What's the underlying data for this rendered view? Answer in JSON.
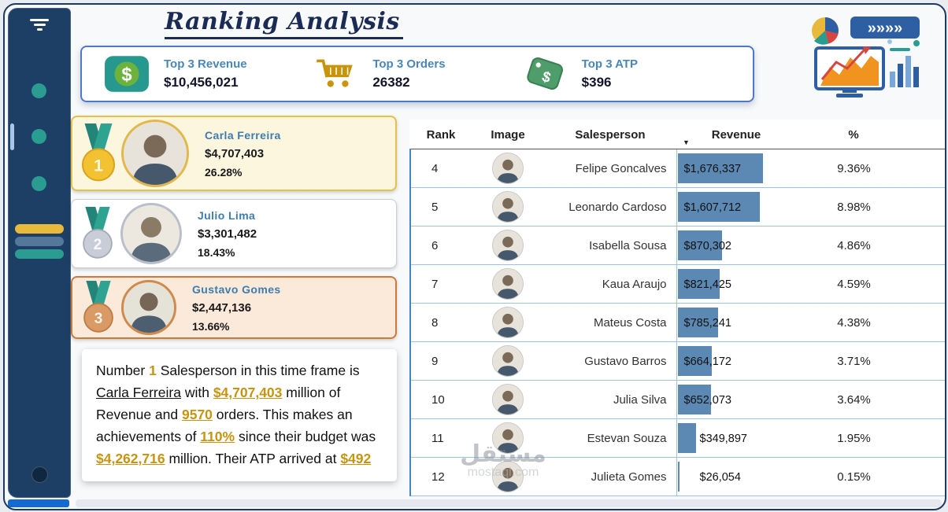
{
  "title": "Ranking Analysis",
  "kpis": [
    {
      "label": "Top 3 Revenue",
      "value": "$10,456,021",
      "icon": "dollar-icon",
      "accent": "#27988e"
    },
    {
      "label": "Top 3 Orders",
      "value": "26382",
      "icon": "cart-icon",
      "accent": "#c8940a"
    },
    {
      "label": "Top 3 ATP",
      "value": "$396",
      "icon": "price-tag-icon",
      "accent": "#4f9d6b"
    }
  ],
  "top3": [
    {
      "rank": "1",
      "name": "Carla Ferreira",
      "revenue": "$4,707,403",
      "percent": "26.28%",
      "medal": "gold"
    },
    {
      "rank": "2",
      "name": "Julio Lima",
      "revenue": "$3,301,482",
      "percent": "18.43%",
      "medal": "silver"
    },
    {
      "rank": "3",
      "name": "Gustavo Gomes",
      "revenue": "$2,447,136",
      "percent": "13.66%",
      "medal": "bronze"
    }
  ],
  "summary": {
    "segments": [
      {
        "t": "text",
        "v": "Number "
      },
      {
        "t": "gold",
        "v": "1"
      },
      {
        "t": "text",
        "v": " Salesperson in this time frame is "
      },
      {
        "t": "u",
        "v": "Carla Ferreira"
      },
      {
        "t": "text",
        "v": " with "
      },
      {
        "t": "goldu",
        "v": "$4,707,403"
      },
      {
        "t": "text",
        "v": " million of Revenue and "
      },
      {
        "t": "goldu",
        "v": "9570"
      },
      {
        "t": "text",
        "v": " orders. This makes an achievements of "
      },
      {
        "t": "goldu",
        "v": "110%"
      },
      {
        "t": "text",
        "v": " since their budget was "
      },
      {
        "t": "goldu",
        "v": "$4,262,716"
      },
      {
        "t": "text",
        "v": " million. Their ATP arrived at "
      },
      {
        "t": "goldu",
        "v": "$492"
      }
    ]
  },
  "table": {
    "columns": [
      "Rank",
      "Image",
      "Salesperson",
      "Revenue",
      "%"
    ],
    "sort_column": "Revenue",
    "sort_direction": "desc",
    "rows": [
      {
        "rank": "4",
        "name": "Felipe Goncalves",
        "revenue": "$1,676,337",
        "revenue_value": 1676337,
        "percent": "9.36%"
      },
      {
        "rank": "5",
        "name": "Leonardo Cardoso",
        "revenue": "$1,607,712",
        "revenue_value": 1607712,
        "percent": "8.98%"
      },
      {
        "rank": "6",
        "name": "Isabella Sousa",
        "revenue": "$870,302",
        "revenue_value": 870302,
        "percent": "4.86%"
      },
      {
        "rank": "7",
        "name": "Kaua Araujo",
        "revenue": "$821,425",
        "revenue_value": 821425,
        "percent": "4.59%"
      },
      {
        "rank": "8",
        "name": "Mateus Costa",
        "revenue": "$785,241",
        "revenue_value": 785241,
        "percent": "4.38%"
      },
      {
        "rank": "9",
        "name": "Gustavo Barros",
        "revenue": "$664,172",
        "revenue_value": 664172,
        "percent": "3.71%"
      },
      {
        "rank": "10",
        "name": "Julia Silva",
        "revenue": "$652,073",
        "revenue_value": 652073,
        "percent": "3.64%"
      },
      {
        "rank": "11",
        "name": "Estevan Souza",
        "revenue": "$349,897",
        "revenue_value": 349897,
        "percent": "1.95%"
      },
      {
        "rank": "12",
        "name": "Julieta Gomes",
        "revenue": "$26,054",
        "revenue_value": 26054,
        "percent": "0.15%"
      }
    ]
  },
  "watermark": {
    "arabic": "مستقل",
    "latin": "mostaql.com"
  },
  "colors": {
    "navy": "#1d3f66",
    "teal": "#2b9c92",
    "gold_text": "#c6940f",
    "bar_blue": "#5b89b4",
    "label_blue": "#4a86b8"
  }
}
